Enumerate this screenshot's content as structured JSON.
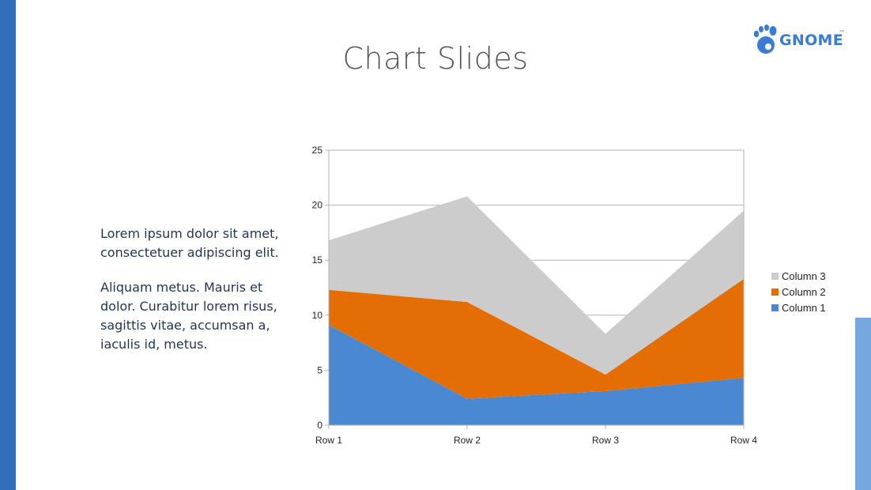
{
  "slide": {
    "title": "Chart Slides",
    "logo_text": "GNOME",
    "logo_tm": "™",
    "paragraphs": [
      "Lorem ipsum dolor sit amet, consectetuer adipiscing elit.",
      "Aliquam metus. Mauris et dolor. Curabitur lorem risus, sagittis vitae, accumsan a, iaculis id, metus."
    ]
  },
  "colors": {
    "left_stripe": "#2f6fb8",
    "right_stripe": "#76a7df",
    "logo": "#3a7bd5"
  },
  "chart_data": {
    "type": "area",
    "stacked": true,
    "categories": [
      "Row 1",
      "Row 2",
      "Row 3",
      "Row 4"
    ],
    "series": [
      {
        "name": "Column 1",
        "values": [
          9.1,
          2.4,
          3.1,
          4.3
        ],
        "color": "#4a89d1"
      },
      {
        "name": "Column 2",
        "values": [
          3.2,
          8.8,
          1.5,
          9.0
        ],
        "color": "#e46d04"
      },
      {
        "name": "Column 3",
        "values": [
          4.5,
          9.6,
          3.7,
          6.2
        ],
        "color": "#cccccc"
      }
    ],
    "ylim": [
      0,
      25
    ],
    "yticks": [
      "0",
      "5",
      "10",
      "15",
      "20",
      "25"
    ],
    "grid": true,
    "legend": "right"
  }
}
